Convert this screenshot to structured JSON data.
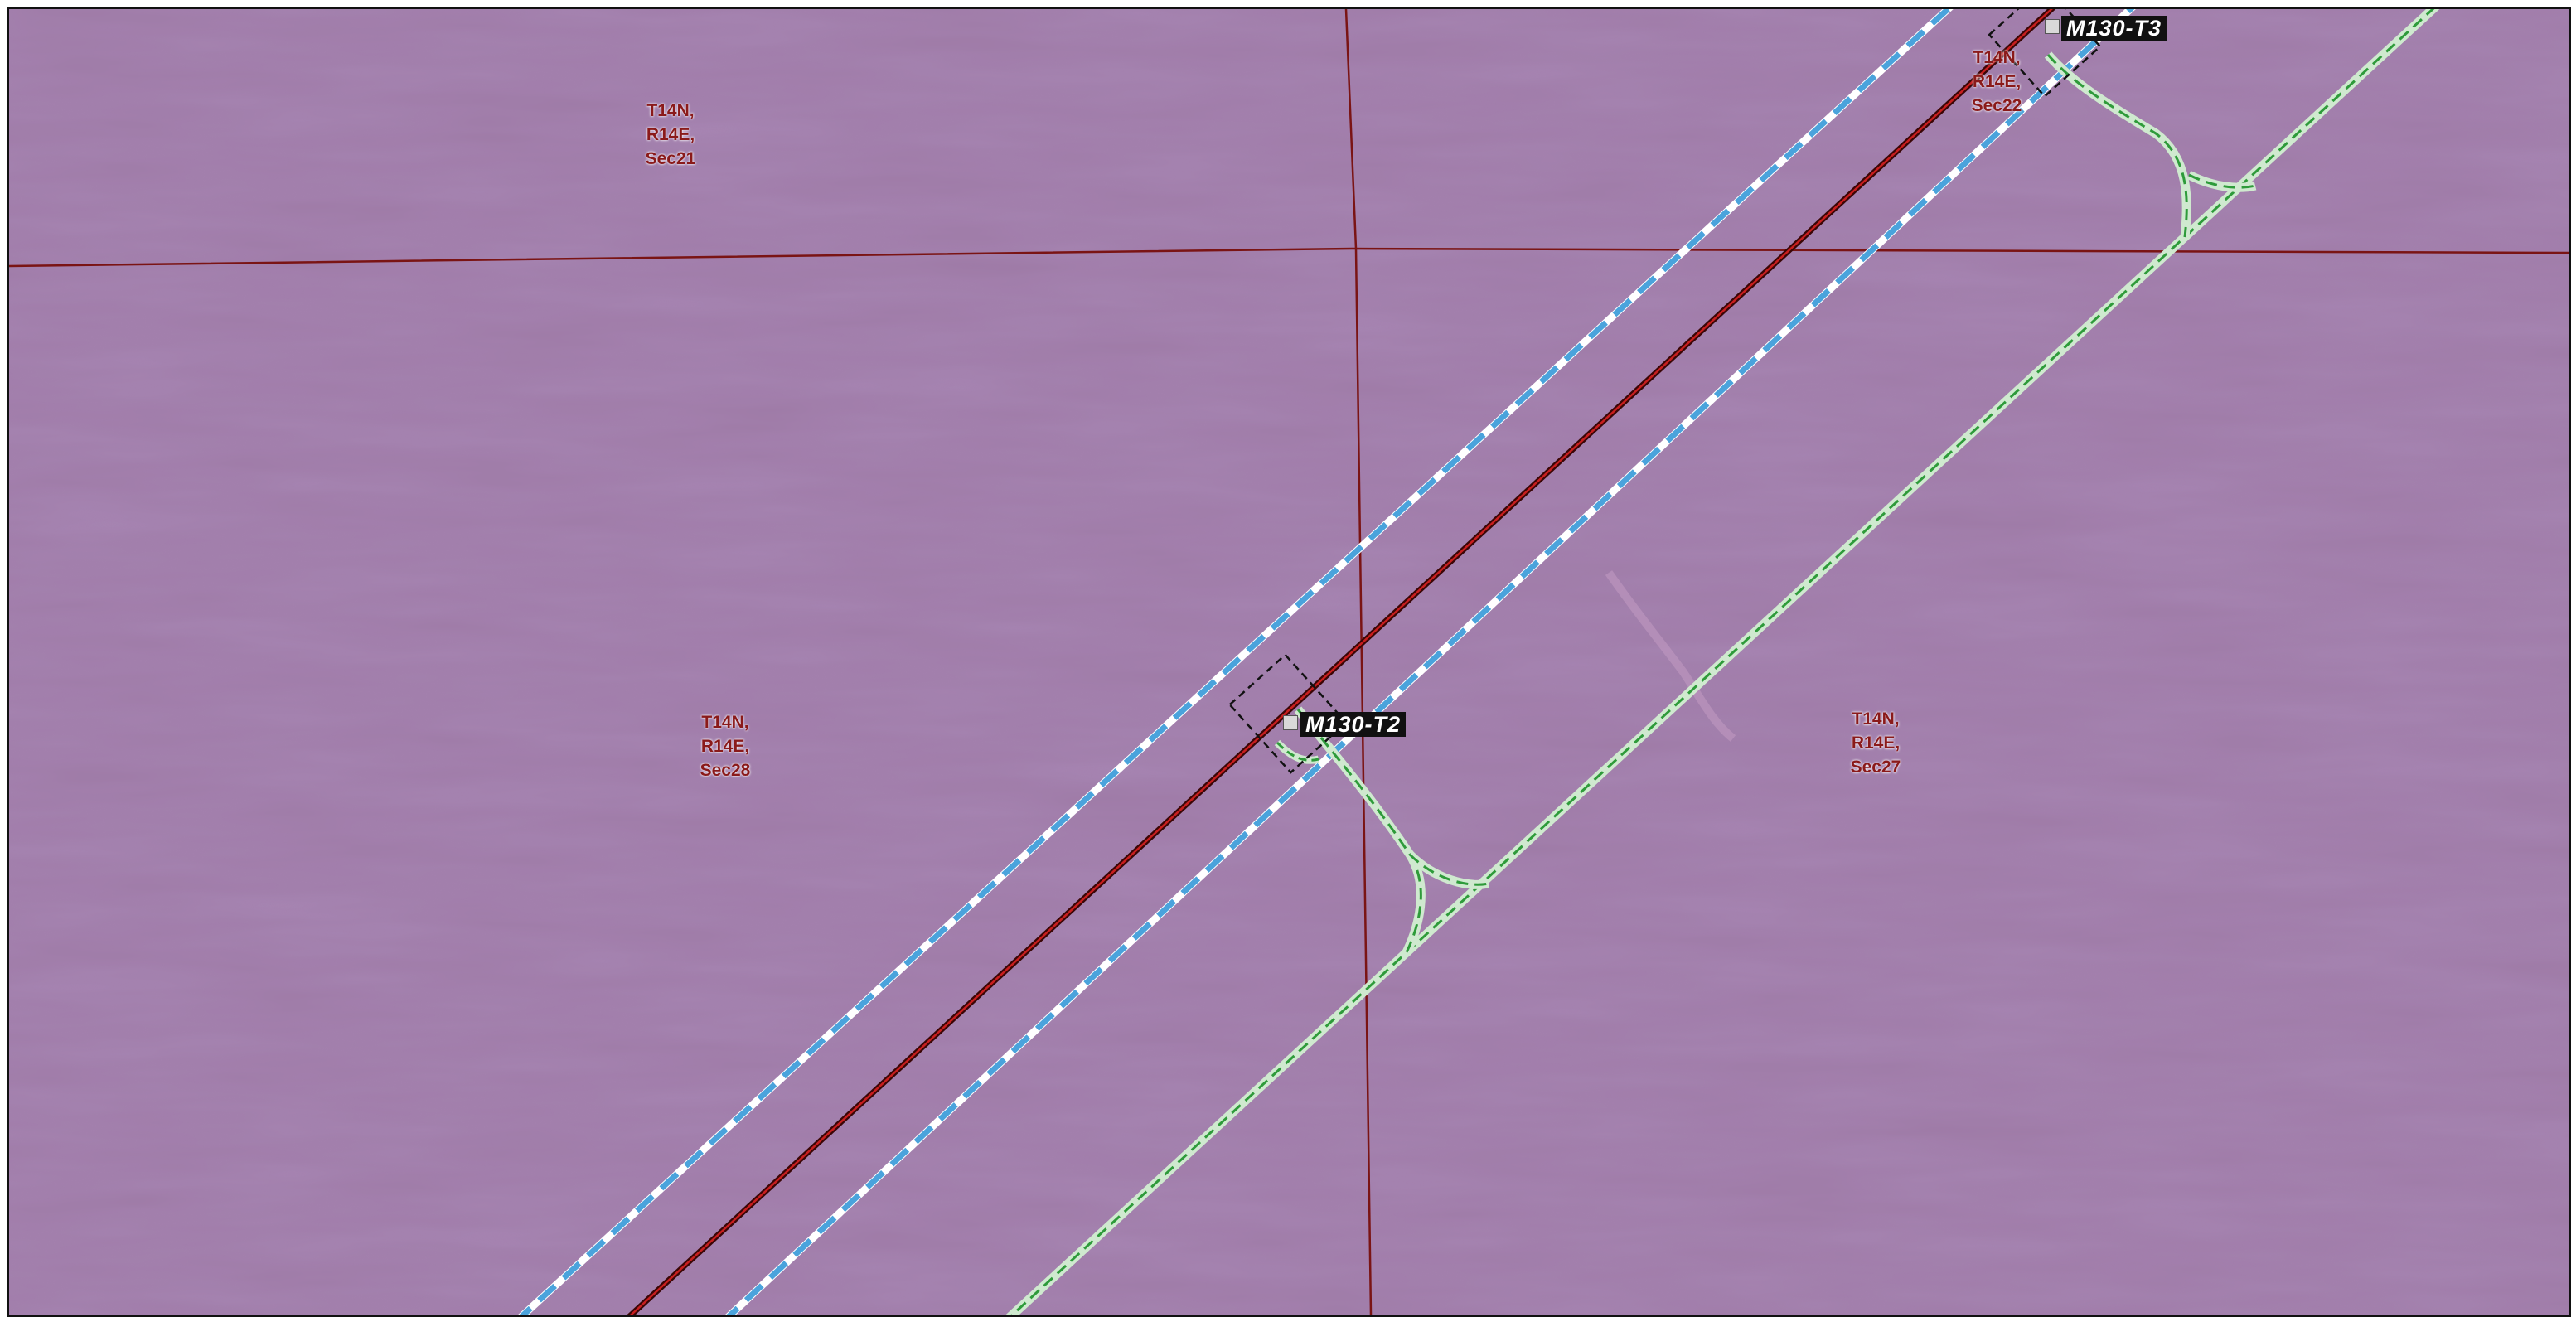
{
  "map": {
    "turbines": [
      {
        "id": "t2",
        "label": "M130-T2"
      },
      {
        "id": "t3",
        "label": "M130-T3"
      }
    ],
    "sections": [
      {
        "id": "sec21",
        "lines": [
          "T14N,",
          "R14E,",
          "Sec21"
        ]
      },
      {
        "id": "sec22",
        "lines": [
          "T14N,",
          "R14E,",
          "Sec22"
        ]
      },
      {
        "id": "sec28",
        "lines": [
          "T14N,",
          "R14E,",
          "Sec28"
        ]
      },
      {
        "id": "sec27",
        "lines": [
          "T14N,",
          "R14E,",
          "Sec27"
        ]
      }
    ],
    "colors": {
      "background": "#9e7aa6",
      "section_line": "#7a1414",
      "collection_line": "#8b0f0f",
      "corridor_blue": "#4aa3dc",
      "road_green": "#2e9b3a",
      "label_red": "#8a1a1a"
    }
  }
}
